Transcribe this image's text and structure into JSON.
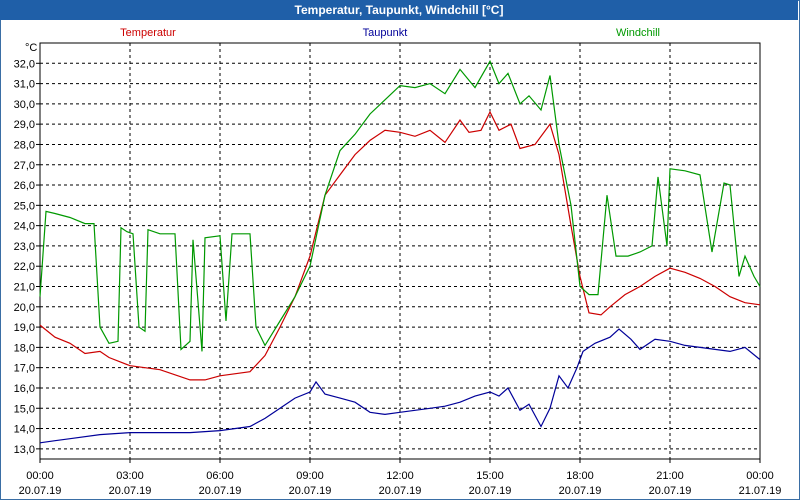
{
  "window": {
    "title": "Temperatur, Taupunkt, Windchill [°C]"
  },
  "chart_data": {
    "type": "line",
    "title": "Temperatur, Taupunkt, Windchill [°C]",
    "ylabel": "°C",
    "ylim": [
      12.5,
      33.0
    ],
    "xlim": [
      0,
      24
    ],
    "grid": true,
    "yticks": [
      "13,0",
      "14,0",
      "15,0",
      "16,0",
      "17,0",
      "18,0",
      "19,0",
      "20,0",
      "21,0",
      "22,0",
      "23,0",
      "24,0",
      "25,0",
      "26,0",
      "27,0",
      "28,0",
      "29,0",
      "30,0",
      "31,0",
      "32,0"
    ],
    "xticks": [
      {
        "time": "00:00",
        "date": "20.07.19"
      },
      {
        "time": "03:00",
        "date": "20.07.19"
      },
      {
        "time": "06:00",
        "date": "20.07.19"
      },
      {
        "time": "09:00",
        "date": "20.07.19"
      },
      {
        "time": "12:00",
        "date": "20.07.19"
      },
      {
        "time": "15:00",
        "date": "20.07.19"
      },
      {
        "time": "18:00",
        "date": "20.07.19"
      },
      {
        "time": "21:00",
        "date": "20.07.19"
      },
      {
        "time": "00:00",
        "date": "21.07.19"
      }
    ],
    "legend": [
      "Temperatur",
      "Taupunkt",
      "Windchill"
    ],
    "series": [
      {
        "name": "Temperatur",
        "color": "#cc0000",
        "points": [
          [
            0,
            19.1
          ],
          [
            0.5,
            18.5
          ],
          [
            1,
            18.2
          ],
          [
            1.5,
            17.7
          ],
          [
            2,
            17.8
          ],
          [
            2.3,
            17.5
          ],
          [
            3,
            17.1
          ],
          [
            4,
            16.9
          ],
          [
            5,
            16.4
          ],
          [
            5.5,
            16.4
          ],
          [
            6,
            16.6
          ],
          [
            7,
            16.8
          ],
          [
            7.5,
            17.6
          ],
          [
            8,
            19.0
          ],
          [
            8.5,
            20.5
          ],
          [
            9,
            22.5
          ],
          [
            9.5,
            25.5
          ],
          [
            10,
            26.5
          ],
          [
            10.5,
            27.5
          ],
          [
            11,
            28.2
          ],
          [
            11.5,
            28.7
          ],
          [
            12,
            28.6
          ],
          [
            12.5,
            28.4
          ],
          [
            13,
            28.7
          ],
          [
            13.5,
            28.1
          ],
          [
            14,
            29.2
          ],
          [
            14.3,
            28.6
          ],
          [
            14.7,
            28.7
          ],
          [
            15,
            29.6
          ],
          [
            15.3,
            28.7
          ],
          [
            15.7,
            29.0
          ],
          [
            16,
            27.8
          ],
          [
            16.5,
            28.0
          ],
          [
            17,
            29.0
          ],
          [
            17.3,
            27.5
          ],
          [
            17.7,
            24.0
          ],
          [
            18,
            21.5
          ],
          [
            18.3,
            19.7
          ],
          [
            18.7,
            19.6
          ],
          [
            19,
            20.0
          ],
          [
            19.5,
            20.6
          ],
          [
            20,
            21.0
          ],
          [
            20.5,
            21.5
          ],
          [
            21,
            21.9
          ],
          [
            21.5,
            21.7
          ],
          [
            22,
            21.4
          ],
          [
            22.5,
            21.0
          ],
          [
            23,
            20.5
          ],
          [
            23.5,
            20.2
          ],
          [
            24,
            20.1
          ]
        ]
      },
      {
        "name": "Taupunkt",
        "color": "#000099",
        "points": [
          [
            0,
            13.3
          ],
          [
            0.5,
            13.4
          ],
          [
            1,
            13.5
          ],
          [
            2,
            13.7
          ],
          [
            3,
            13.8
          ],
          [
            4,
            13.8
          ],
          [
            5,
            13.8
          ],
          [
            6,
            13.9
          ],
          [
            7,
            14.1
          ],
          [
            7.5,
            14.5
          ],
          [
            8,
            15.0
          ],
          [
            8.5,
            15.5
          ],
          [
            9,
            15.8
          ],
          [
            9.2,
            16.3
          ],
          [
            9.5,
            15.7
          ],
          [
            10,
            15.5
          ],
          [
            10.5,
            15.3
          ],
          [
            11,
            14.8
          ],
          [
            11.5,
            14.7
          ],
          [
            12,
            14.8
          ],
          [
            12.5,
            14.9
          ],
          [
            13,
            15.0
          ],
          [
            13.5,
            15.1
          ],
          [
            14,
            15.3
          ],
          [
            14.5,
            15.6
          ],
          [
            15,
            15.8
          ],
          [
            15.3,
            15.6
          ],
          [
            15.6,
            16.0
          ],
          [
            16,
            14.9
          ],
          [
            16.3,
            15.2
          ],
          [
            16.7,
            14.1
          ],
          [
            17,
            15.0
          ],
          [
            17.3,
            16.6
          ],
          [
            17.6,
            16.0
          ],
          [
            17.9,
            17.0
          ],
          [
            18.1,
            17.8
          ],
          [
            18.5,
            18.2
          ],
          [
            19,
            18.5
          ],
          [
            19.3,
            18.9
          ],
          [
            19.7,
            18.4
          ],
          [
            20,
            17.9
          ],
          [
            20.5,
            18.4
          ],
          [
            21,
            18.3
          ],
          [
            21.5,
            18.1
          ],
          [
            22,
            18.0
          ],
          [
            22.5,
            17.9
          ],
          [
            23,
            17.8
          ],
          [
            23.5,
            18.0
          ],
          [
            24,
            17.4
          ]
        ]
      },
      {
        "name": "Windchill",
        "color": "#009900",
        "points": [
          [
            0,
            20.5
          ],
          [
            0.2,
            24.7
          ],
          [
            0.5,
            24.6
          ],
          [
            1,
            24.4
          ],
          [
            1.5,
            24.1
          ],
          [
            1.8,
            24.1
          ],
          [
            2,
            19.0
          ],
          [
            2.3,
            18.2
          ],
          [
            2.6,
            18.3
          ],
          [
            2.7,
            23.9
          ],
          [
            2.9,
            23.7
          ],
          [
            3.1,
            23.6
          ],
          [
            3.3,
            19.0
          ],
          [
            3.5,
            18.8
          ],
          [
            3.6,
            23.8
          ],
          [
            4,
            23.6
          ],
          [
            4.5,
            23.6
          ],
          [
            4.7,
            17.9
          ],
          [
            5,
            18.3
          ],
          [
            5.1,
            23.3
          ],
          [
            5.4,
            17.8
          ],
          [
            5.5,
            23.4
          ],
          [
            6,
            23.5
          ],
          [
            6.2,
            19.3
          ],
          [
            6.4,
            23.6
          ],
          [
            7,
            23.6
          ],
          [
            7.2,
            19.0
          ],
          [
            7.5,
            18.1
          ],
          [
            8,
            19.3
          ],
          [
            8.5,
            20.5
          ],
          [
            9,
            22.0
          ],
          [
            9.5,
            25.5
          ],
          [
            10,
            27.7
          ],
          [
            10.5,
            28.5
          ],
          [
            11,
            29.5
          ],
          [
            11.5,
            30.2
          ],
          [
            12,
            30.9
          ],
          [
            12.5,
            30.8
          ],
          [
            13,
            31.0
          ],
          [
            13.5,
            30.5
          ],
          [
            14,
            31.7
          ],
          [
            14.5,
            30.8
          ],
          [
            15,
            32.1
          ],
          [
            15.3,
            31.0
          ],
          [
            15.6,
            31.5
          ],
          [
            16,
            30.0
          ],
          [
            16.3,
            30.4
          ],
          [
            16.7,
            29.7
          ],
          [
            17,
            31.4
          ],
          [
            17.3,
            28.0
          ],
          [
            17.7,
            25.0
          ],
          [
            18,
            21.0
          ],
          [
            18.3,
            20.6
          ],
          [
            18.6,
            20.6
          ],
          [
            18.9,
            25.5
          ],
          [
            19.2,
            22.5
          ],
          [
            19.6,
            22.5
          ],
          [
            20,
            22.7
          ],
          [
            20.4,
            23.0
          ],
          [
            20.6,
            26.4
          ],
          [
            20.9,
            23.0
          ],
          [
            21,
            26.8
          ],
          [
            21.5,
            26.7
          ],
          [
            22,
            26.5
          ],
          [
            22.4,
            22.7
          ],
          [
            22.8,
            26.1
          ],
          [
            23,
            26.0
          ],
          [
            23.3,
            21.5
          ],
          [
            23.5,
            22.5
          ],
          [
            23.8,
            21.5
          ],
          [
            24,
            21.0
          ]
        ]
      }
    ]
  }
}
